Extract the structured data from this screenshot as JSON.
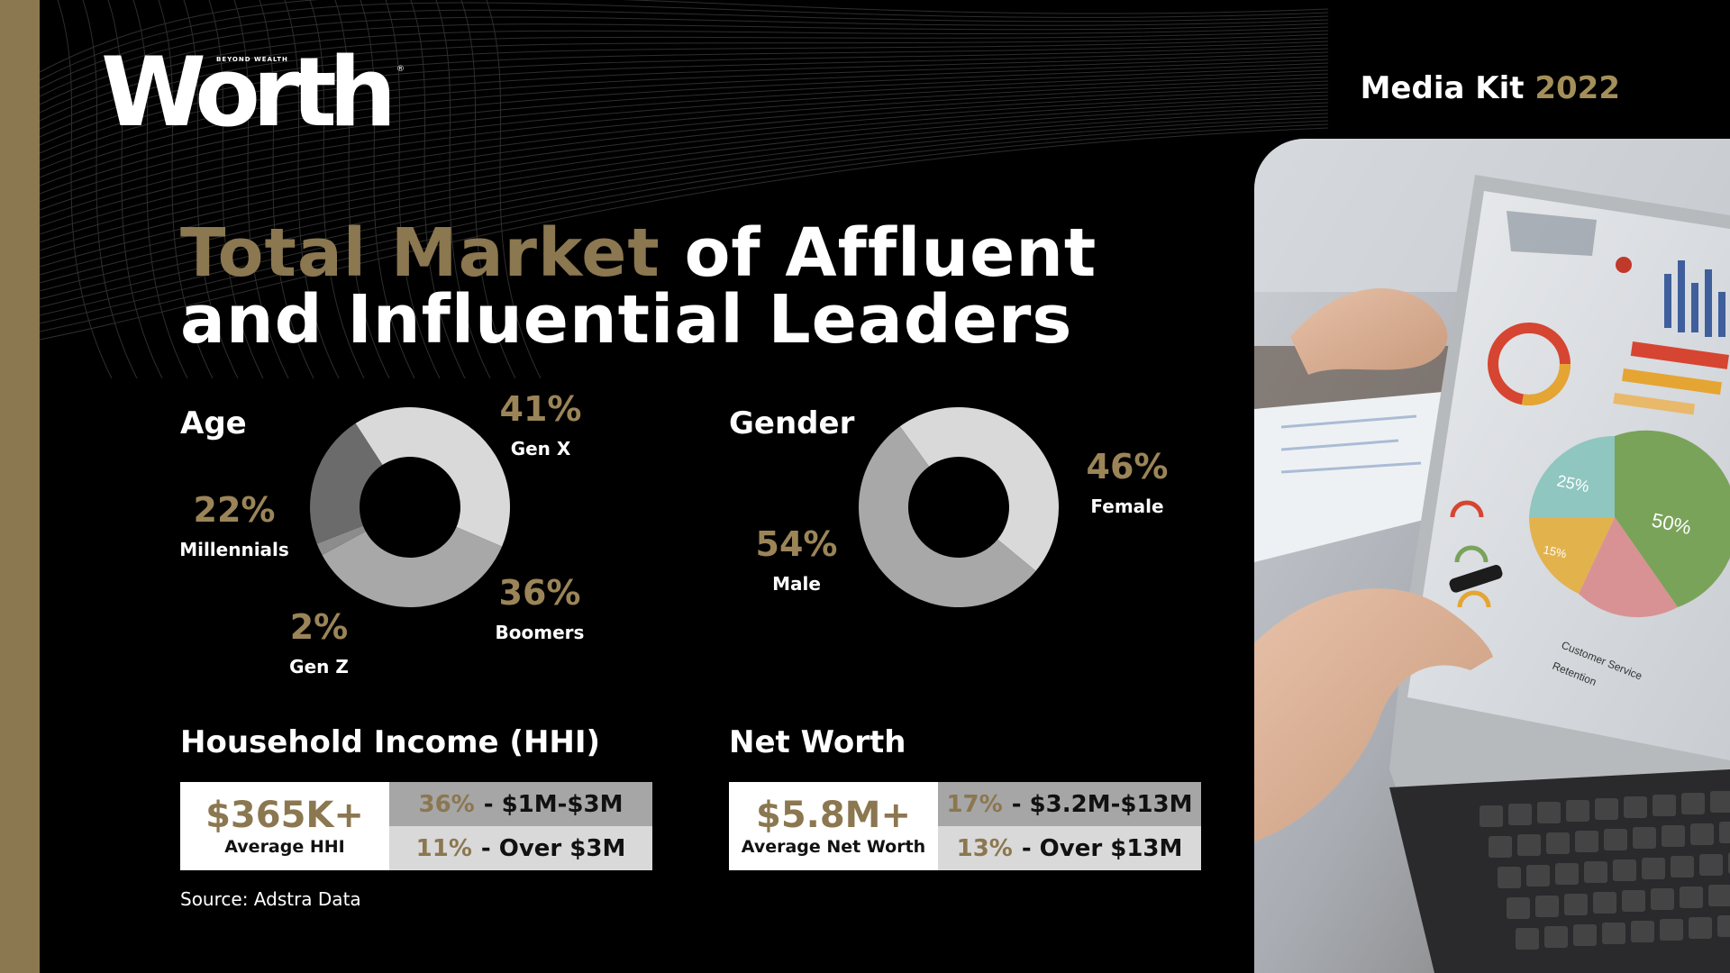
{
  "brand": {
    "logo_text": "Worth",
    "logo_tagline": "BEYOND WEALTH",
    "logo_reg": "®"
  },
  "header": {
    "media_kit_label": "Media Kit",
    "media_kit_year": "2022"
  },
  "title": {
    "accent": "Total Market",
    "line1_rest": "of Affluent",
    "line2": "and Influential Leaders"
  },
  "colors": {
    "gold": "#8b7750",
    "gold_light": "#9b8558",
    "background": "#000000",
    "sidebar": "#8b7750"
  },
  "chart_data": [
    {
      "type": "pie",
      "title": "Age",
      "donut": true,
      "slices": [
        {
          "label": "Gen X",
          "pct_label": "41%",
          "value": 41,
          "color": "#d9d9d9"
        },
        {
          "label": "Boomers",
          "pct_label": "36%",
          "value": 36,
          "color": "#a8a8a8"
        },
        {
          "label": "Gen Z",
          "pct_label": "2%",
          "value": 2,
          "color": "#8c8c8c"
        },
        {
          "label": "Millennials",
          "pct_label": "22%",
          "value": 22,
          "color": "#6b6b6b"
        }
      ]
    },
    {
      "type": "pie",
      "title": "Gender",
      "donut": true,
      "slices": [
        {
          "label": "Female",
          "pct_label": "46%",
          "value": 46,
          "color": "#d9d9d9"
        },
        {
          "label": "Male",
          "pct_label": "54%",
          "value": 54,
          "color": "#a8a8a8"
        }
      ]
    }
  ],
  "income": {
    "title": "Household Income (HHI)",
    "value": "$365K+",
    "caption": "Average HHI",
    "rows": [
      {
        "pct": "36%",
        "text": "- $1M-$3M"
      },
      {
        "pct": "11%",
        "text": "- Over $3M"
      }
    ]
  },
  "networth": {
    "title": "Net Worth",
    "value": "$5.8M+",
    "caption": "Average Net Worth",
    "rows": [
      {
        "pct": "17%",
        "text": "- $3.2M-$13M"
      },
      {
        "pct": "13%",
        "text": "- Over $13M"
      }
    ]
  },
  "source": "Source:  Adstra Data",
  "photo": {
    "screen_labels": [
      "25%",
      "50%",
      "15%",
      "Customer Service",
      "Retention"
    ]
  }
}
